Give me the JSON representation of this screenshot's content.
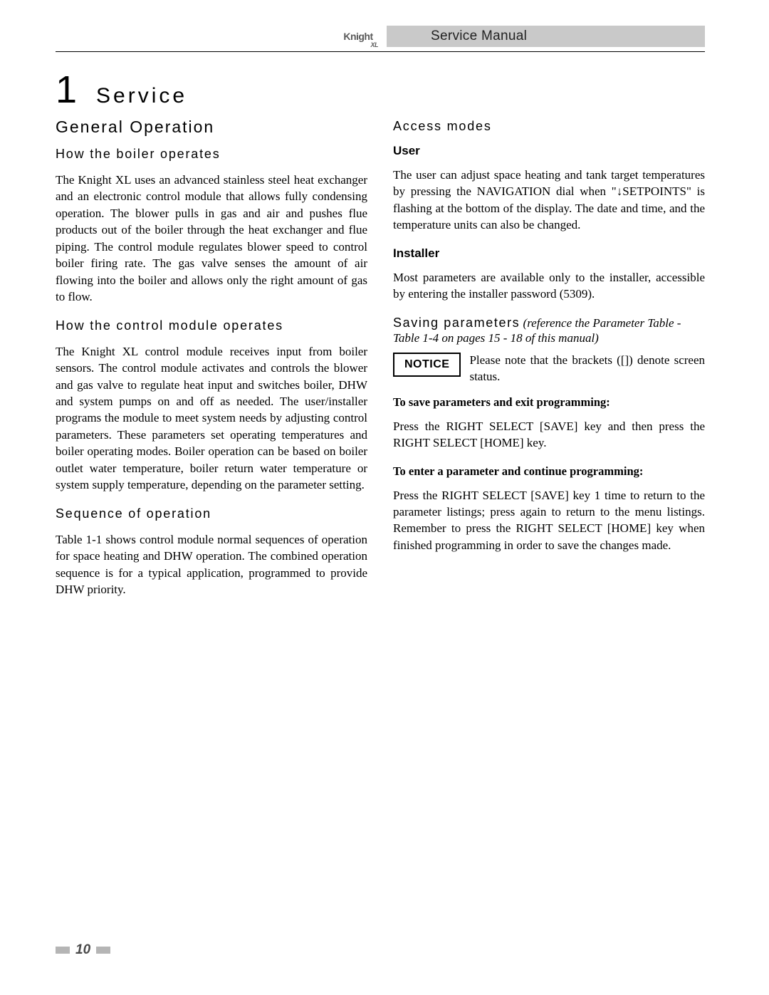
{
  "header": {
    "logo_text": "Knight",
    "logo_sub": "XL",
    "manual_title": "Service Manual"
  },
  "chapter": {
    "number": "1",
    "title": "Service"
  },
  "left": {
    "h2": "General Operation",
    "s1": {
      "heading": "How the boiler operates",
      "body": "The Knight XL uses an advanced stainless steel heat exchanger and an electronic control module that allows fully condensing operation. The blower pulls in gas and air and pushes flue products out of the boiler through the heat exchanger and flue piping. The control module regulates blower speed to control boiler firing rate. The gas valve senses the amount of air flowing into the boiler and allows only the right amount of gas to flow."
    },
    "s2": {
      "heading": "How the control module operates",
      "body": "The Knight XL control module receives input from boiler sensors. The control module activates and controls the blower and gas valve to regulate heat input and switches boiler, DHW and system pumps on and off as needed. The user/installer programs the module to meet system needs by adjusting control parameters. These parameters set operating temperatures and boiler operating modes. Boiler operation can be based on boiler outlet water temperature, boiler return water temperature or system supply temperature, depending on the parameter setting."
    },
    "s3": {
      "heading": "Sequence of operation",
      "body": "Table 1-1 shows control module normal sequences of operation for space heating and DHW operation. The combined operation sequence is for a typical application, programmed to provide DHW priority."
    }
  },
  "right": {
    "h3": "Access modes",
    "user": {
      "heading": "User",
      "body": "The user can adjust space heating and tank target temperatures by pressing the NAVIGATION dial when \"↓SETPOINTS\" is flashing at the bottom of the display. The date and time, and the temperature units can also be changed."
    },
    "installer": {
      "heading": "Installer",
      "body": "Most parameters are available only to the installer, accessible by entering the installer password (5309)."
    },
    "saving": {
      "heading": "Saving parameters",
      "ref": " (reference the Parameter Table - Table 1-4 on pages 15 - 18 of this manual)",
      "notice_label": "NOTICE",
      "notice_text": "Please note that the brackets ([]) denote screen status.",
      "to_save_label": "To save parameters and exit programming:",
      "to_save_body": "Press the RIGHT SELECT [SAVE] key and then press the RIGHT SELECT [HOME] key.",
      "to_enter_label": "To enter a parameter and continue programming:",
      "to_enter_body": "Press the RIGHT SELECT [SAVE] key 1 time to return to the parameter listings; press again to return to the menu listings. Remember to press the RIGHT SELECT [HOME] key when finished programming in order to save the changes made."
    }
  },
  "footer": {
    "page_number": "10"
  }
}
